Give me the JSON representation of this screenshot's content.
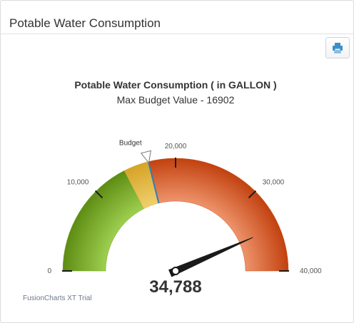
{
  "panel": {
    "title": "Potable Water Consumption"
  },
  "toolbar": {
    "print_icon": "printer-icon"
  },
  "chart_data": {
    "type": "angular-gauge",
    "title": "Potable Water Consumption ( in GALLON )",
    "subtitle": "Max Budget Value - 16902",
    "min": 0,
    "max": 40000,
    "ticks": [
      {
        "value": 0,
        "label": "0"
      },
      {
        "value": 10000,
        "label": "10,000"
      },
      {
        "value": 20000,
        "label": "20,000"
      },
      {
        "value": 30000,
        "label": "30,000"
      },
      {
        "value": 40000,
        "label": "40,000"
      }
    ],
    "color_ranges": [
      {
        "min": 0,
        "max": 14000,
        "color": "#6f9e21"
      },
      {
        "min": 14000,
        "max": 16902,
        "color": "#e0b23a"
      },
      {
        "min": 16902,
        "max": 40000,
        "color": "#cf4f1a"
      }
    ],
    "trend_point": {
      "value": 16902,
      "label": "Budget",
      "color": "#2e7fb8"
    },
    "dial_value": 34788,
    "value_label": "34,788",
    "watermark": "FusionCharts XT Trial"
  }
}
